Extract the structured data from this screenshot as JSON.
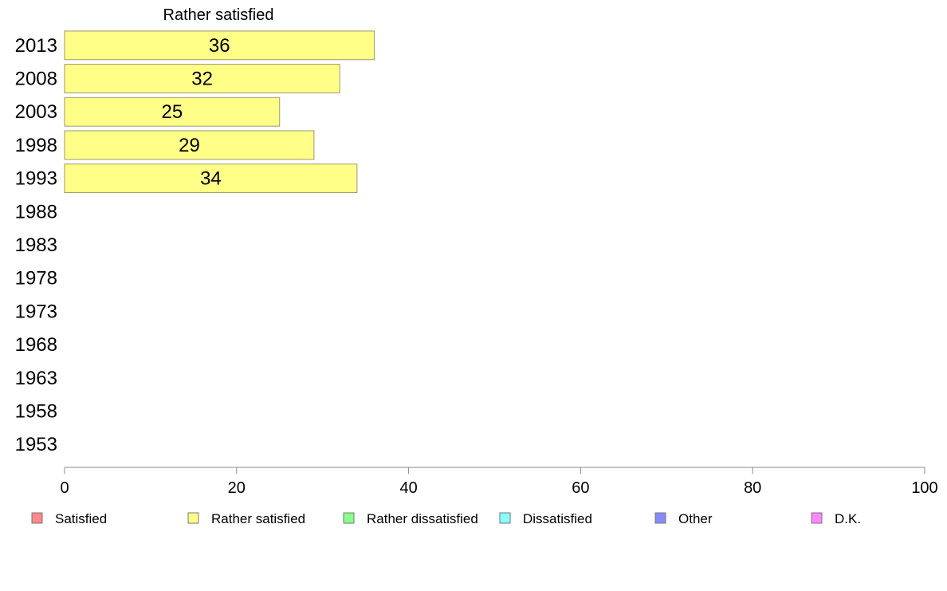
{
  "chart_data": {
    "type": "bar",
    "orientation": "horizontal",
    "title": "Rather satisfied",
    "categories": [
      "2013",
      "2008",
      "2003",
      "1998",
      "1993",
      "1988",
      "1983",
      "1978",
      "1973",
      "1968",
      "1963",
      "1958",
      "1953"
    ],
    "series": [
      {
        "name": "Rather satisfied",
        "color": "#ffff88",
        "values": [
          36,
          32,
          25,
          29,
          34,
          null,
          null,
          null,
          null,
          null,
          null,
          null,
          null
        ]
      }
    ],
    "xlim": [
      0,
      100
    ],
    "xticks": [
      "0",
      "20",
      "40",
      "60",
      "80",
      "100"
    ],
    "xlabel": "",
    "ylabel": "",
    "grid": false,
    "legend_position": "bottom",
    "legend": [
      {
        "label": "Satisfied",
        "color": "#ff8888"
      },
      {
        "label": "Rather satisfied",
        "color": "#ffff88"
      },
      {
        "label": "Rather dissatisfied",
        "color": "#88ff88"
      },
      {
        "label": "Dissatisfied",
        "color": "#88ffff"
      },
      {
        "label": "Other",
        "color": "#8888ff"
      },
      {
        "label": "D.K.",
        "color": "#ff88ff"
      }
    ]
  }
}
